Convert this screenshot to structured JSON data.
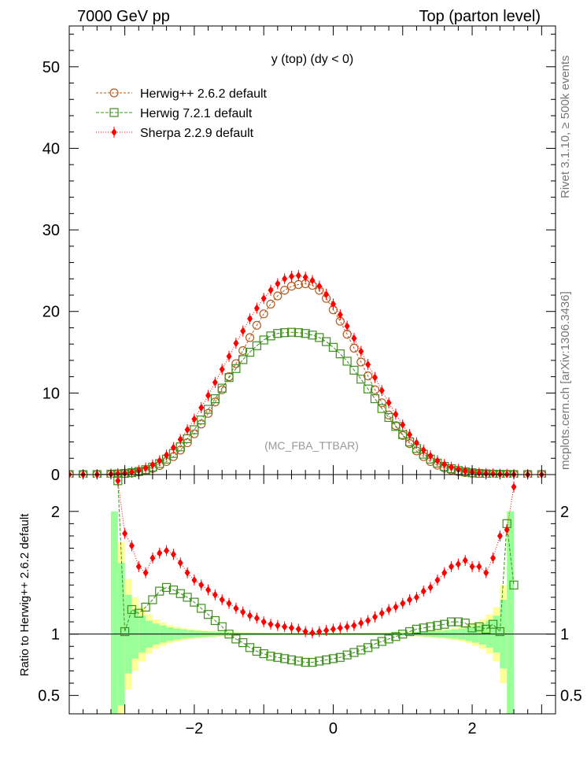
{
  "header": {
    "left": "7000 GeV pp",
    "right": "Top (parton level)"
  },
  "side_labels": {
    "rivet": "Rivet 3.1.10, ≥ 500k events",
    "mcplots": "mcplots.cern.ch [arXiv:1306.3436]"
  },
  "chart_data": [
    {
      "type": "line",
      "title": "y (top) (dy < 0)",
      "watermark": "(MC_FBA_TTBAR)",
      "xlabel": "",
      "ylabel": "",
      "xlim": [
        -3.8,
        3.2
      ],
      "ylim": [
        0,
        55
      ],
      "yticks": [
        0,
        10,
        20,
        30,
        40,
        50
      ],
      "legend_position": "top-left",
      "x": [
        -3.8,
        -3.6,
        -3.4,
        -3.2,
        -3.1,
        -3.0,
        -2.9,
        -2.8,
        -2.7,
        -2.6,
        -2.5,
        -2.4,
        -2.3,
        -2.2,
        -2.1,
        -2.0,
        -1.9,
        -1.8,
        -1.7,
        -1.6,
        -1.5,
        -1.4,
        -1.3,
        -1.2,
        -1.1,
        -1.0,
        -0.9,
        -0.8,
        -0.7,
        -0.6,
        -0.5,
        -0.4,
        -0.3,
        -0.2,
        -0.1,
        0.0,
        0.1,
        0.2,
        0.3,
        0.4,
        0.5,
        0.6,
        0.7,
        0.8,
        0.9,
        1.0,
        1.1,
        1.2,
        1.3,
        1.4,
        1.5,
        1.6,
        1.7,
        1.8,
        1.9,
        2.0,
        2.1,
        2.2,
        2.3,
        2.4,
        2.5,
        2.6,
        2.8,
        3.0
      ],
      "series": [
        {
          "name": "Herwig++ 2.6.2 default",
          "color": "#b35a1f",
          "marker": "circle",
          "values": [
            0,
            0,
            0,
            0.05,
            0.08,
            0.12,
            0.2,
            0.32,
            0.5,
            0.75,
            1.1,
            1.6,
            2.2,
            3.0,
            3.9,
            5.0,
            6.2,
            7.5,
            8.9,
            10.4,
            12.0,
            13.6,
            15.2,
            16.8,
            18.3,
            19.7,
            20.9,
            21.9,
            22.6,
            23.1,
            23.3,
            23.4,
            23.2,
            22.6,
            21.6,
            20.2,
            18.8,
            17.2,
            15.5,
            13.8,
            12.1,
            10.4,
            8.8,
            7.3,
            6.0,
            4.8,
            3.8,
            2.9,
            2.2,
            1.6,
            1.15,
            0.8,
            0.55,
            0.37,
            0.25,
            0.16,
            0.1,
            0.06,
            0.04,
            0.02,
            0.01,
            0,
            0,
            0
          ]
        },
        {
          "name": "Herwig 7.2.1 default",
          "color": "#3f8f1f",
          "marker": "square",
          "values": [
            0,
            0,
            0,
            0.05,
            0.08,
            0.14,
            0.24,
            0.38,
            0.6,
            0.92,
            1.35,
            1.9,
            2.6,
            3.4,
            4.4,
            5.5,
            6.7,
            8.0,
            9.3,
            10.6,
            11.9,
            13.0,
            14.1,
            15.0,
            15.8,
            16.5,
            17.0,
            17.3,
            17.4,
            17.45,
            17.4,
            17.3,
            17.1,
            16.8,
            16.3,
            15.6,
            14.8,
            13.9,
            12.8,
            11.7,
            10.5,
            9.3,
            8.1,
            7.0,
            5.9,
            4.9,
            4.0,
            3.2,
            2.5,
            1.9,
            1.4,
            1.0,
            0.72,
            0.5,
            0.34,
            0.22,
            0.14,
            0.09,
            0.05,
            0.03,
            0.015,
            0,
            0,
            0
          ]
        },
        {
          "name": "Sherpa 2.2.9 default",
          "color": "#ff0000",
          "marker": "diamond",
          "values": [
            0,
            0,
            0,
            0.06,
            0.12,
            0.18,
            0.3,
            0.5,
            0.8,
            1.2,
            1.7,
            2.4,
            3.3,
            4.3,
            5.5,
            6.8,
            8.2,
            9.7,
            11.3,
            12.9,
            14.5,
            16.1,
            17.6,
            19.1,
            20.4,
            21.6,
            22.6,
            23.4,
            24.0,
            24.3,
            24.4,
            24.2,
            23.8,
            23.1,
            22.1,
            20.9,
            19.6,
            18.2,
            16.7,
            15.1,
            13.5,
            11.9,
            10.3,
            8.8,
            7.4,
            6.1,
            4.9,
            3.9,
            3.0,
            2.3,
            1.7,
            1.25,
            0.9,
            0.63,
            0.44,
            0.3,
            0.2,
            0.13,
            0.08,
            0.05,
            0.03,
            0.015,
            0,
            0
          ]
        }
      ]
    },
    {
      "type": "line",
      "ylabel": "Ratio to Herwig++ 2.6.2 default",
      "xlim": [
        -3.8,
        3.2
      ],
      "ylim": [
        0.35,
        2.3
      ],
      "yticks": [
        0.5,
        1,
        2
      ],
      "xticks": [
        -2,
        0,
        2
      ],
      "x": [
        -3.1,
        -3.0,
        -2.9,
        -2.8,
        -2.7,
        -2.6,
        -2.5,
        -2.4,
        -2.3,
        -2.2,
        -2.1,
        -2.0,
        -1.9,
        -1.8,
        -1.7,
        -1.6,
        -1.5,
        -1.4,
        -1.3,
        -1.2,
        -1.1,
        -1.0,
        -0.9,
        -0.8,
        -0.7,
        -0.6,
        -0.5,
        -0.4,
        -0.3,
        -0.2,
        -0.1,
        0.0,
        0.1,
        0.2,
        0.3,
        0.4,
        0.5,
        0.6,
        0.7,
        0.8,
        0.9,
        1.0,
        1.1,
        1.2,
        1.3,
        1.4,
        1.5,
        1.6,
        1.7,
        1.8,
        1.9,
        2.0,
        2.1,
        2.2,
        2.3,
        2.4,
        2.5,
        2.6
      ],
      "series": [
        {
          "name": "Herwig 7.2.1 default",
          "color": "#3f8f1f",
          "marker": "square",
          "values": [
            2.25,
            1.02,
            1.2,
            1.17,
            1.22,
            1.28,
            1.35,
            1.38,
            1.36,
            1.33,
            1.3,
            1.26,
            1.21,
            1.16,
            1.11,
            1.06,
            1.0,
            0.96,
            0.93,
            0.89,
            0.86,
            0.84,
            0.82,
            0.81,
            0.8,
            0.79,
            0.78,
            0.77,
            0.77,
            0.78,
            0.79,
            0.8,
            0.81,
            0.83,
            0.85,
            0.87,
            0.89,
            0.92,
            0.94,
            0.96,
            0.98,
            1.0,
            1.02,
            1.04,
            1.05,
            1.06,
            1.07,
            1.08,
            1.1,
            1.1,
            1.09,
            1.05,
            1.06,
            1.04,
            1.08,
            1.02,
            1.9,
            1.4
          ]
        },
        {
          "name": "Sherpa 2.2.9 default",
          "color": "#ff0000",
          "marker": "diamond",
          "values": [
            2.25,
            1.82,
            1.72,
            1.55,
            1.5,
            1.62,
            1.66,
            1.68,
            1.65,
            1.58,
            1.5,
            1.44,
            1.4,
            1.36,
            1.32,
            1.28,
            1.25,
            1.21,
            1.18,
            1.15,
            1.13,
            1.1,
            1.08,
            1.07,
            1.06,
            1.05,
            1.04,
            1.02,
            1.01,
            1.02,
            1.03,
            1.04,
            1.05,
            1.06,
            1.07,
            1.09,
            1.11,
            1.14,
            1.17,
            1.2,
            1.22,
            1.25,
            1.28,
            1.3,
            1.35,
            1.38,
            1.44,
            1.5,
            1.55,
            1.57,
            1.6,
            1.55,
            1.55,
            1.5,
            1.62,
            1.8,
            1.85,
            2.2
          ]
        }
      ],
      "bands": {
        "x_edges": [
          -3.2,
          -3.1,
          -3.0,
          -2.9,
          -2.8,
          -2.7,
          -2.6,
          -2.5,
          -2.4,
          -2.3,
          -2.2,
          -2.1,
          -2.0,
          -1.9,
          -1.8,
          -1.7,
          -1.6,
          -1.5,
          -1.4,
          -1.3,
          -1.2,
          -1.1,
          -1.0,
          -0.9,
          -0.8,
          -0.7,
          -0.6,
          -0.5,
          -0.4,
          -0.3,
          -0.2,
          -0.1,
          0.0,
          0.1,
          0.2,
          0.3,
          0.4,
          0.5,
          0.6,
          0.7,
          0.8,
          0.9,
          1.0,
          1.1,
          1.2,
          1.3,
          1.4,
          1.5,
          1.6,
          1.7,
          1.8,
          1.9,
          2.0,
          2.1,
          2.2,
          2.3,
          2.4,
          2.5,
          2.6
        ],
        "green_halfwidth": [
          1.0,
          0.58,
          0.32,
          0.2,
          0.15,
          0.11,
          0.085,
          0.07,
          0.055,
          0.045,
          0.038,
          0.032,
          0.027,
          0.023,
          0.02,
          0.017,
          0.015,
          0.013,
          0.012,
          0.011,
          0.01,
          0.009,
          0.009,
          0.008,
          0.008,
          0.008,
          0.008,
          0.008,
          0.008,
          0.008,
          0.008,
          0.008,
          0.008,
          0.008,
          0.008,
          0.008,
          0.008,
          0.009,
          0.009,
          0.01,
          0.011,
          0.012,
          0.013,
          0.015,
          0.017,
          0.02,
          0.023,
          0.027,
          0.032,
          0.038,
          0.045,
          0.055,
          0.07,
          0.085,
          0.11,
          0.15,
          0.28,
          1.0
        ],
        "yellow_halfwidth": [
          1.0,
          0.75,
          0.45,
          0.3,
          0.22,
          0.16,
          0.12,
          0.095,
          0.075,
          0.06,
          0.05,
          0.042,
          0.035,
          0.03,
          0.026,
          0.022,
          0.019,
          0.017,
          0.015,
          0.014,
          0.013,
          0.012,
          0.011,
          0.011,
          0.01,
          0.01,
          0.01,
          0.01,
          0.01,
          0.01,
          0.01,
          0.01,
          0.01,
          0.01,
          0.01,
          0.01,
          0.011,
          0.011,
          0.012,
          0.013,
          0.014,
          0.015,
          0.017,
          0.019,
          0.022,
          0.026,
          0.03,
          0.035,
          0.042,
          0.05,
          0.06,
          0.075,
          0.095,
          0.12,
          0.16,
          0.22,
          0.4,
          1.0
        ]
      }
    }
  ]
}
